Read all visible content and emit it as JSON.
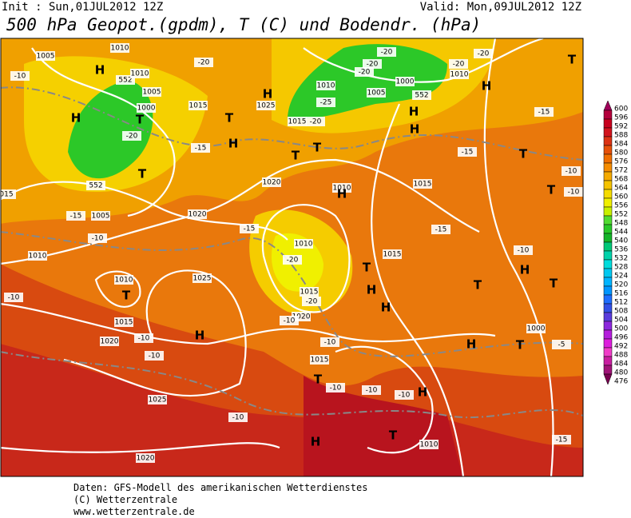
{
  "header": {
    "init": "Init : Sun,01JUL2012 12Z",
    "valid": "Valid: Mon,09JUL2012 12Z",
    "title": "500 hPa Geopot.(gpdm), T (C) und Bodendr. (hPa)"
  },
  "colorbar": {
    "labels": [
      600,
      596,
      592,
      588,
      584,
      580,
      576,
      572,
      568,
      564,
      560,
      556,
      552,
      548,
      544,
      540,
      536,
      532,
      528,
      524,
      520,
      516,
      512,
      508,
      504,
      500,
      496,
      492,
      488,
      484,
      480,
      476
    ],
    "colors": [
      "#a0005a",
      "#b4003c",
      "#c8001e",
      "#d2141e",
      "#dc3214",
      "#e6500a",
      "#f06e00",
      "#f58c00",
      "#f5aa00",
      "#f5c300",
      "#f5dc00",
      "#f0f000",
      "#c8f000",
      "#50dc32",
      "#28c828",
      "#14b428",
      "#00c878",
      "#00d2aa",
      "#00dcdc",
      "#00c8f0",
      "#00b4ff",
      "#0096ff",
      "#1e6eff",
      "#3250e6",
      "#5a3cdc",
      "#8c28dc",
      "#b41edc",
      "#dc1edc",
      "#f03cc8",
      "#c81ea0",
      "#a01478",
      "#780050"
    ]
  },
  "map": {
    "labels": [
      "1005",
      "1010",
      "H",
      "-10",
      "552",
      "1010",
      "H",
      "1005",
      "1000",
      "T",
      "-20",
      "1015",
      "-20",
      "T",
      "H",
      "1025",
      "H",
      "-15",
      "T",
      "552",
      "015",
      "1005",
      "-15",
      "-10",
      "1020",
      "1020",
      "T",
      "-15",
      "1010",
      "1010",
      "T",
      "-10",
      "1025",
      "1015",
      "1020",
      "-10",
      "-10",
      "H",
      "1025",
      "-10",
      "1020",
      "1010",
      "-20",
      "1015",
      "-20",
      "1020",
      "-10",
      "-10",
      "1015",
      "T",
      "-10",
      "-10",
      "-10",
      "H",
      "T",
      "1010",
      "H",
      "1010",
      "H",
      "1015",
      "T",
      "H",
      "H",
      "1015",
      "-15",
      "T",
      "-25",
      "1010",
      "1005",
      "1000",
      "-20",
      "-20",
      "-20",
      "552",
      "-20",
      "1015",
      "H",
      "H",
      "-20",
      "-20",
      "1010",
      "H",
      "T",
      "-15",
      "-15",
      "T",
      "-10",
      "-10",
      "T",
      "H",
      "-10",
      "T",
      "T",
      "1000",
      "-5",
      "T",
      "H",
      "-15"
    ]
  },
  "footer": {
    "lines": [
      "Daten: GFS-Modell des amerikanischen Wetterdienstes",
      "(C) Wetterzentrale",
      "www.wetterzentrale.de"
    ]
  }
}
